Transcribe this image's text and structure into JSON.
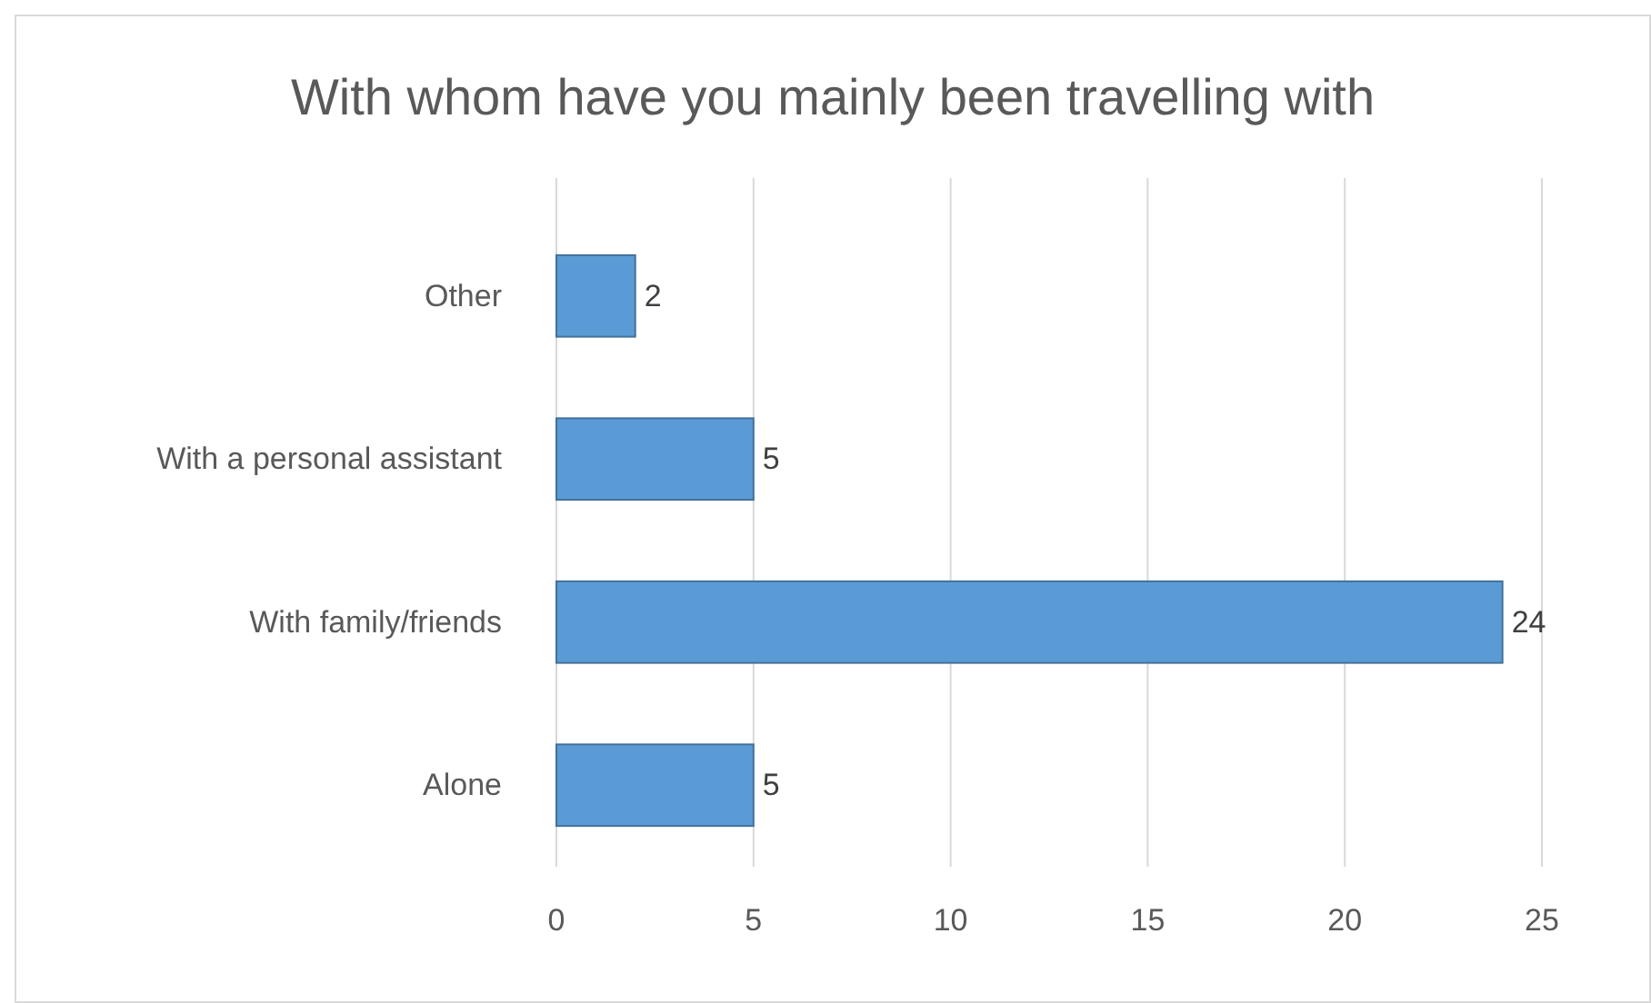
{
  "chart_data": {
    "type": "bar",
    "orientation": "horizontal",
    "title": "With whom have you mainly been travelling with",
    "categories": [
      "Other",
      "With a personal assistant",
      "With family/friends",
      "Alone"
    ],
    "values": [
      2,
      5,
      24,
      5
    ],
    "color": "#5b9bd5",
    "xlim": [
      0,
      25
    ],
    "xticks": [
      0,
      5,
      10,
      15,
      20,
      25
    ],
    "grid": "x",
    "data_labels": true
  }
}
